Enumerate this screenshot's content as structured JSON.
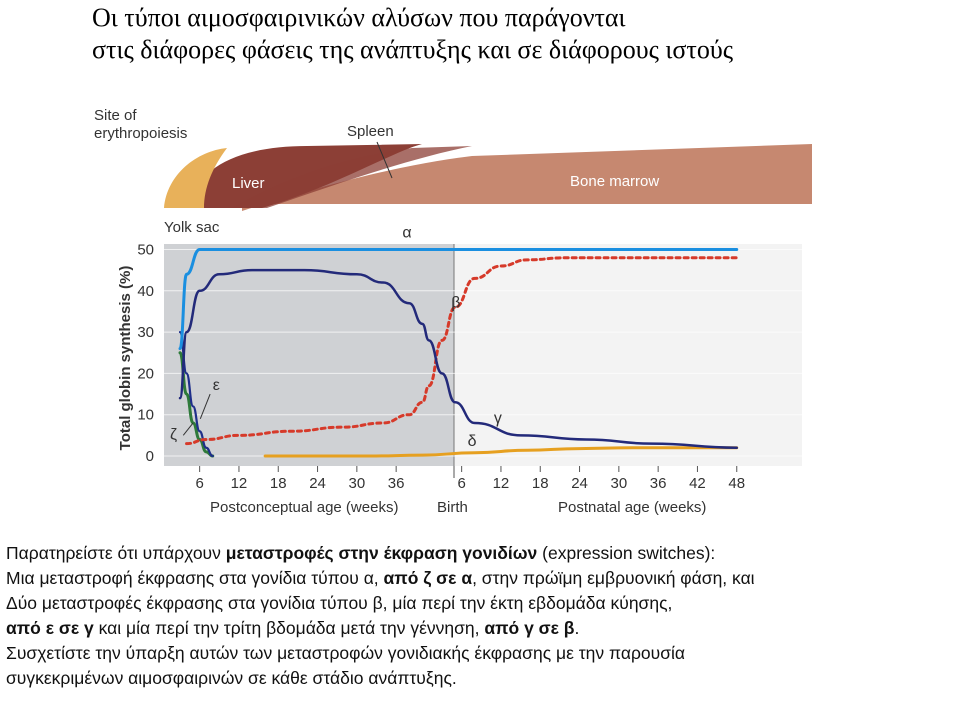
{
  "title": {
    "line1": "Οι τύποι αιμοσφαιρινικών αλύσων που παράγονται",
    "line2": "στις διάφορες φάσεις της ανάπτυξης και σε διάφορους ιστούς"
  },
  "colors": {
    "panel_prenatal": "#cfd1d4",
    "panel_postnatal": "#f3f3f3",
    "yolk": "#e8b15a",
    "liver": "#8c3f36",
    "bone_marrow": "#c68870",
    "alpha": "#1a8fe0",
    "zeta": "#2e7a3a",
    "epsilon": "#1f2f8a",
    "gamma": "#232a7a",
    "beta": "#d63a2a",
    "delta": "#e6a020"
  },
  "chart_data": {
    "type": "line",
    "ylabel": "Total globin synthesis (%)",
    "xlabel_prenatal": "Postconceptual age (weeks)",
    "xlabel_postnatal": "Postnatal age (weeks)",
    "birth_label": "Birth",
    "ylim": [
      0,
      50
    ],
    "yticks": [
      "0",
      "10",
      "20",
      "30",
      "40",
      "50"
    ],
    "prenatal_ticks": [
      "6",
      "12",
      "18",
      "24",
      "30",
      "36"
    ],
    "postnatal_ticks": [
      "6",
      "12",
      "18",
      "24",
      "30",
      "36",
      "42",
      "48"
    ],
    "sites_label": "Site of erythropoiesis",
    "sites": [
      {
        "name": "Yolk sac"
      },
      {
        "name": "Liver"
      },
      {
        "name": "Spleen"
      },
      {
        "name": "Bone marrow"
      }
    ],
    "series": [
      {
        "name": "α",
        "x": [
          3,
          4,
          6,
          12,
          20,
          30,
          40,
          48,
          60,
          70,
          88
        ],
        "y": [
          26,
          44,
          50,
          50,
          50,
          50,
          50,
          50,
          50,
          50,
          50
        ]
      },
      {
        "name": "γ",
        "x": [
          3,
          4,
          6,
          9,
          14,
          22,
          30,
          34,
          38,
          40,
          41,
          43,
          45,
          48,
          55,
          65,
          75,
          88
        ],
        "y": [
          14,
          30,
          40,
          44,
          45,
          45,
          44,
          42,
          37,
          32,
          28,
          20,
          13,
          8,
          5,
          4,
          3,
          2
        ]
      },
      {
        "name": "β",
        "x": [
          4,
          7,
          12,
          20,
          28,
          34,
          38,
          40,
          41,
          43,
          45,
          48,
          52,
          56,
          62,
          70,
          80,
          88
        ],
        "y": [
          3,
          4,
          5,
          6,
          7,
          8,
          10,
          13,
          17,
          28,
          36,
          43,
          46,
          47.5,
          48,
          48,
          48,
          48
        ]
      },
      {
        "name": "ε",
        "x": [
          3,
          4,
          5,
          6,
          7,
          8
        ],
        "y": [
          30,
          20,
          12,
          6,
          2,
          0
        ]
      },
      {
        "name": "ζ",
        "x": [
          3,
          4,
          5,
          6,
          7,
          8
        ],
        "y": [
          25,
          15,
          8,
          4,
          1,
          0
        ]
      },
      {
        "name": "δ",
        "x": [
          16,
          24,
          32,
          40,
          48,
          56,
          64,
          72,
          80,
          88
        ],
        "y": [
          0,
          0,
          0,
          0.2,
          0.8,
          1.4,
          1.8,
          2,
          2,
          2
        ]
      }
    ]
  },
  "notes": {
    "line1_a": "Παρατηρείστε ότι υπάρχουν ",
    "line1_b": "μεταστροφές στην έκφραση γονιδίων",
    "line1_c": " (expression switches):",
    "line2_a": "Μια μεταστροφή έκφρασης στα γονίδια τύπου α, ",
    "line2_b": "από ζ σε α",
    "line2_c": ", στην πρώϊμη εμβρυονική φάση, και",
    "line3": "Δύο μεταστροφές έκφρασης στα γονίδια τύπου β, μία περί την έκτη εβδομάδα κύησης,",
    "line4_a": "από ε σε γ",
    "line4_b": " και μία περί την τρίτη βδομάδα μετά την γέννηση, ",
    "line4_c": "από γ σε β",
    "line4_d": ".",
    "line5": "Συσχετίστε την ύπαρξη αυτών των μεταστροφών γονιδιακής έκφρασης με την παρουσία",
    "line6": "συγκεκριμένων αιμοσφαιρινών σε κάθε στάδιο ανάπτυξης."
  }
}
